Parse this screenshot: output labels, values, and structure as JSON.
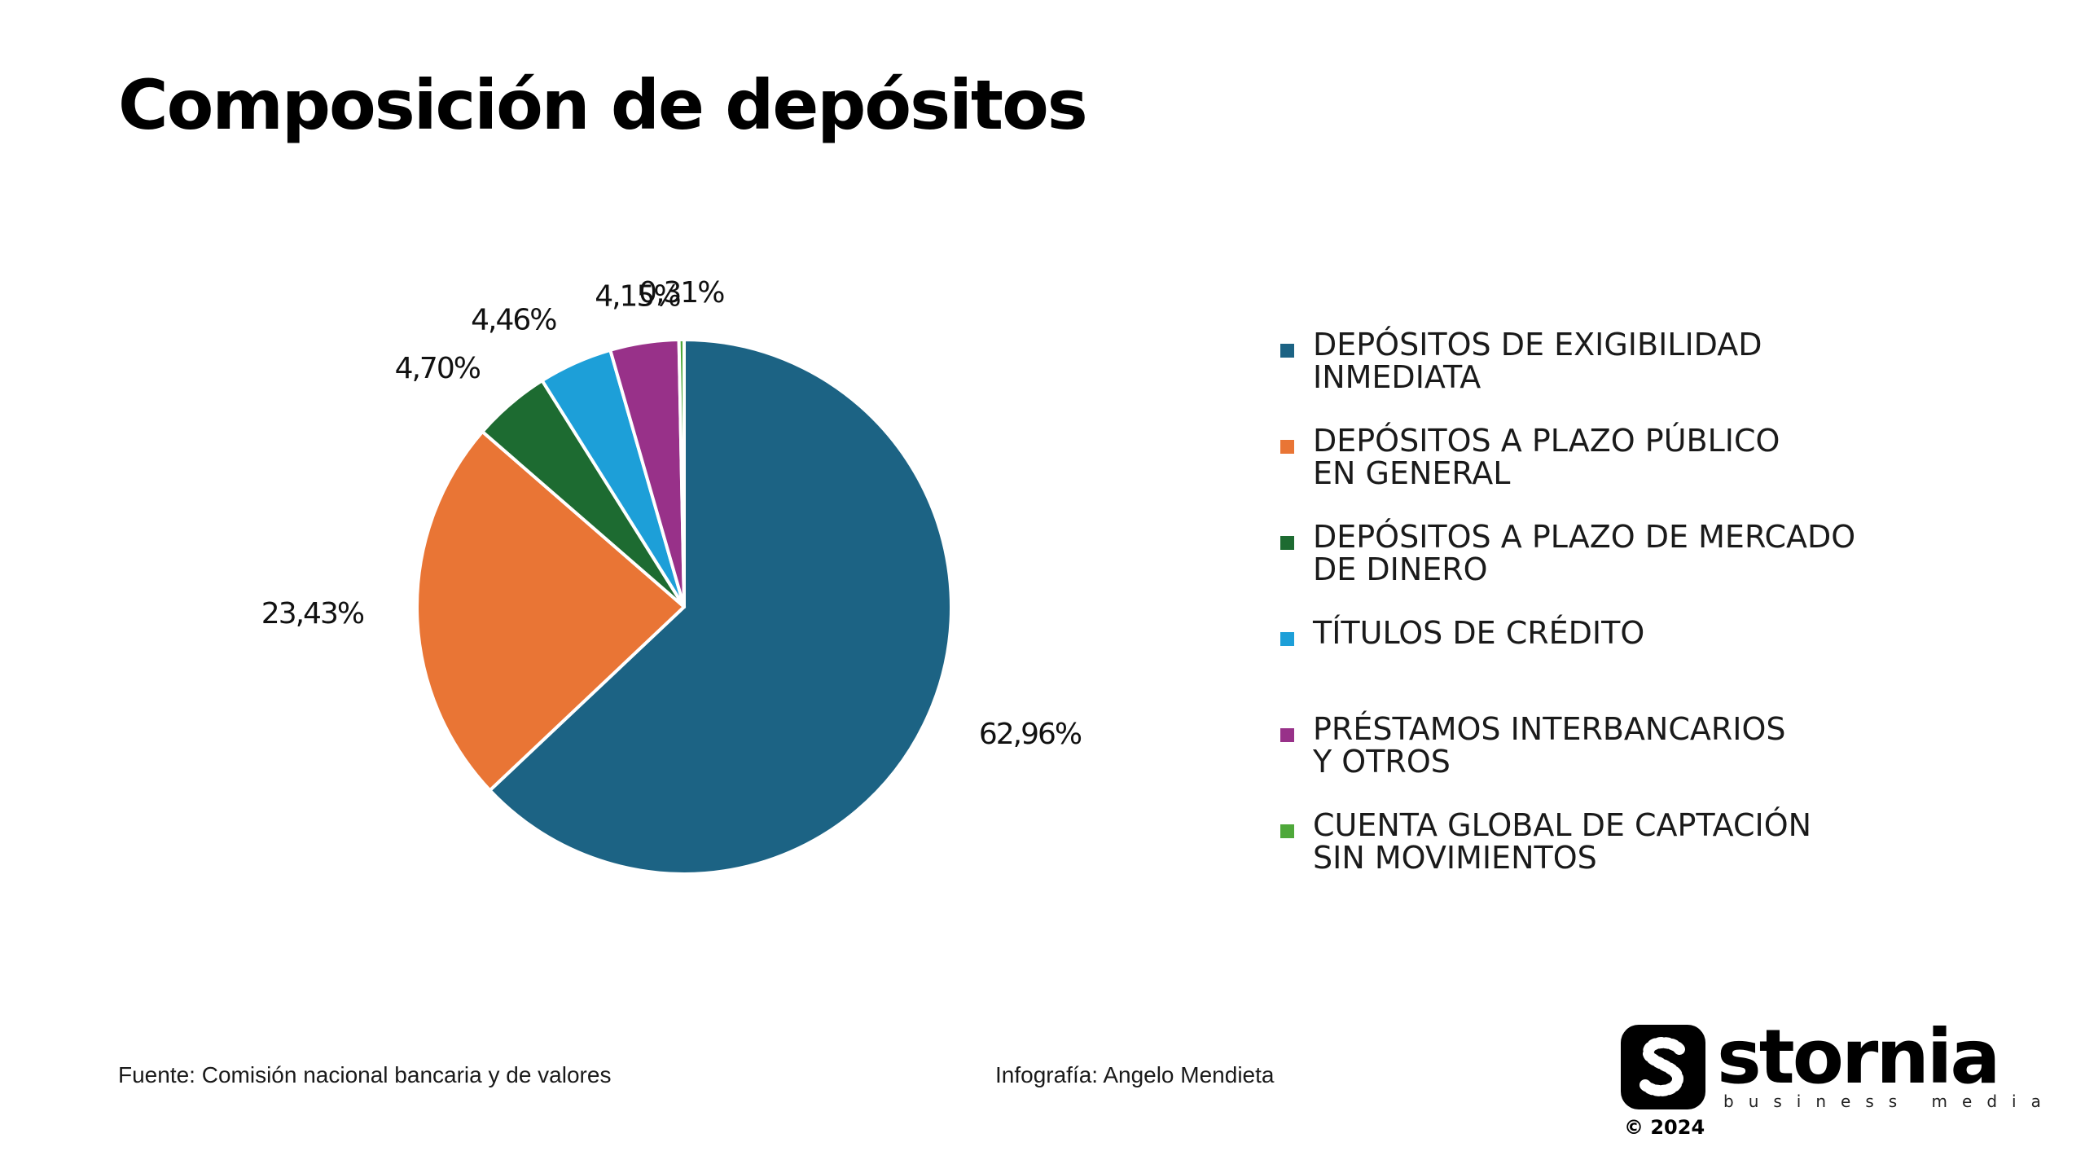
{
  "title": "Composición de depósitos",
  "footer": {
    "source": "Fuente: Comisión nacional bancaria y de valores",
    "credit": "Infografía: Angelo Mendieta"
  },
  "brand": {
    "name": "stornia",
    "tagline": "business media",
    "year": "© 2024",
    "mark_icon": "stornia-s-logo-icon"
  },
  "chart_data": {
    "type": "pie",
    "categories": [
      "DEPÓSITOS DE EXIGIBILIDAD\nINMEDIATA",
      "DEPÓSITOS A PLAZO PÚBLICO\nEN GENERAL",
      "DEPÓSITOS A PLAZO DE MERCADO\nDE DINERO",
      "TÍTULOS DE CRÉDITO",
      "PRÉSTAMOS INTERBANCARIOS\nY OTROS",
      "CUENTA GLOBAL DE CAPTACIÓN\nSIN MOVIMIENTOS"
    ],
    "values": [
      62.96,
      23.43,
      4.7,
      4.46,
      4.15,
      0.31
    ],
    "data_labels": [
      "62,96%",
      "23,43%",
      "4,70%",
      "4,46%",
      "4,15%",
      "0,31%"
    ],
    "colors": [
      "#1c6384",
      "#e97535",
      "#1d6b31",
      "#1d9fd8",
      "#983189",
      "#4ea83a"
    ],
    "legend_position": "right",
    "direction": "clockwise from top"
  }
}
